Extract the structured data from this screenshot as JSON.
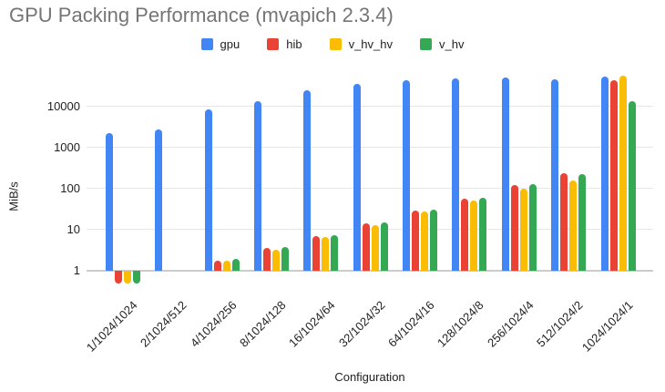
{
  "colors": {
    "title_text": "#757575",
    "axis_text": "#222222",
    "gridline": "#e6e6e6",
    "baseline": "#cccccc",
    "background": "#ffffff"
  },
  "chart_data": {
    "type": "bar",
    "title": "GPU Packing Performance (mvapich 2.3.4)",
    "xlabel": "Configuration",
    "ylabel": "MiB/s",
    "y_scale": "log",
    "y_ticks": [
      1,
      10,
      100,
      1000,
      10000
    ],
    "ylim": [
      0.4,
      80000
    ],
    "grid": true,
    "legend_position": "top-center",
    "categories": [
      "1/1024/1024",
      "2/1024/512",
      "4/1024/256",
      "8/1024/128",
      "16/1024/64",
      "32/1024/32",
      "64/1024/16",
      "128/1024/8",
      "256/1024/4",
      "512/1024/2",
      "1024/1024/1"
    ],
    "series": [
      {
        "name": "gpu",
        "color": "#4285F4",
        "values": [
          2200,
          2750,
          8300,
          13000,
          24500,
          36000,
          44000,
          47000,
          50000,
          45500,
          54000
        ]
      },
      {
        "name": "hib",
        "color": "#EA4335",
        "values": [
          0.5,
          1,
          1.8,
          3.5,
          7.0,
          14.5,
          29,
          57,
          120,
          235,
          44000
        ]
      },
      {
        "name": "v_hv_hv",
        "color": "#FBBC04",
        "values": [
          0.5,
          1,
          1.8,
          3.2,
          6.6,
          13,
          27,
          50,
          100,
          160,
          54500
        ]
      },
      {
        "name": "v_hv",
        "color": "#34A853",
        "values": [
          0.5,
          1,
          1.9,
          3.7,
          7.2,
          15,
          30,
          60,
          125,
          220,
          13200
        ]
      }
    ]
  }
}
